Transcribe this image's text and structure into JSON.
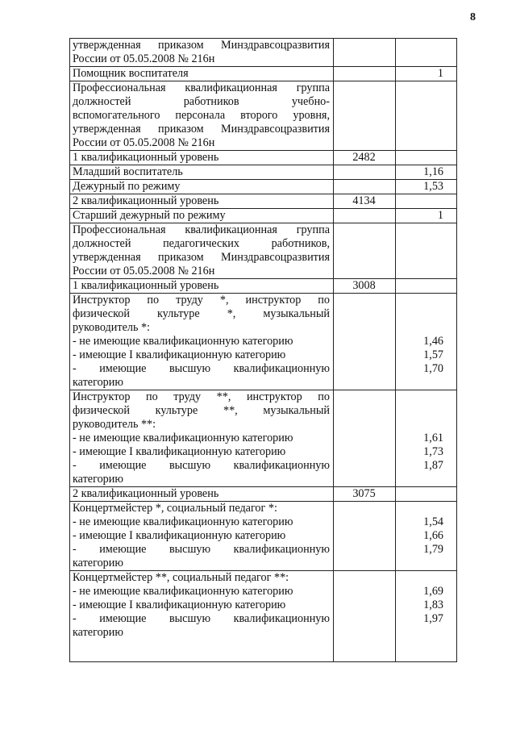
{
  "page_number": "8",
  "rows": [
    {
      "paras": [
        [
          "утвержденная приказом Минздравсоцразвития",
          "России от 05.05.2008 № 216н"
        ]
      ],
      "salary": "",
      "coef": []
    },
    {
      "paras": [
        [
          "Помощник воспитателя"
        ]
      ],
      "salary": "",
      "coef": [
        "1"
      ]
    },
    {
      "paras": [
        [
          "Профессиональная квалификационная группа",
          "должностей работников учебно-",
          "вспомогательного персонала второго уровня,",
          "утвержденная приказом Минздравсоцразвития",
          "России от 05.05.2008 № 216н"
        ]
      ],
      "salary": "",
      "coef": []
    },
    {
      "paras": [
        [
          "1 квалификационный уровень"
        ]
      ],
      "salary": "2482",
      "coef": []
    },
    {
      "paras": [
        [
          "Младший воспитатель"
        ]
      ],
      "salary": "",
      "coef": [
        "1,16"
      ]
    },
    {
      "paras": [
        [
          "Дежурный по режиму"
        ]
      ],
      "salary": "",
      "coef": [
        "1,53"
      ]
    },
    {
      "paras": [
        [
          "2 квалификационный уровень"
        ]
      ],
      "salary": "4134",
      "coef": []
    },
    {
      "paras": [
        [
          "Старший дежурный по режиму"
        ]
      ],
      "salary": "",
      "coef": [
        "1"
      ]
    },
    {
      "paras": [
        [
          "Профессиональная квалификационная группа",
          "должностей педагогических работников,",
          "утвержденная приказом Минздравсоцразвития",
          "России от 05.05.2008 № 216н"
        ]
      ],
      "salary": "",
      "coef": []
    },
    {
      "paras": [
        [
          "1 квалификационный уровень"
        ]
      ],
      "salary": "3008",
      "coef": []
    },
    {
      "paras": [
        [
          "Инструктор по труду *, инструктор по",
          "физической культуре *, музыкальный",
          "руководитель *:"
        ],
        [
          "- не имеющие квалификационную категорию"
        ],
        [
          "- имеющие I квалификационную категорию"
        ],
        [
          "- имеющие высшую квалификационную",
          "категорию"
        ]
      ],
      "salary": "",
      "coef": [
        "",
        "",
        "",
        "1,46",
        "1,57",
        "1,70"
      ]
    },
    {
      "paras": [
        [
          "Инструктор по труду **, инструктор по",
          "физической культуре **, музыкальный",
          "руководитель **:"
        ],
        [
          "- не имеющие квалификационную категорию"
        ],
        [
          "- имеющие I квалификационную категорию"
        ],
        [
          "- имеющие высшую квалификационную",
          "категорию"
        ]
      ],
      "salary": "",
      "coef": [
        "",
        "",
        "",
        "1,61",
        "1,73",
        "1,87"
      ]
    },
    {
      "paras": [
        [
          "2 квалификационный уровень"
        ]
      ],
      "salary": "3075",
      "coef": []
    },
    {
      "paras": [
        [
          "Концертмейстер *, социальный педагог *:"
        ],
        [
          "- не имеющие квалификационную категорию"
        ],
        [
          "- имеющие I квалификационную категорию"
        ],
        [
          "- имеющие высшую квалификационную",
          "категорию"
        ]
      ],
      "salary": "",
      "coef": [
        "",
        "1,54",
        "1,66",
        "1,79"
      ]
    },
    {
      "paras": [
        [
          "Концертмейстер **, социальный педагог **:"
        ],
        [
          "- не имеющие квалификационную категорию"
        ],
        [
          "- имеющие I квалификационную категорию"
        ],
        [
          "- имеющие высшую квалификационную",
          "категорию"
        ]
      ],
      "salary": "",
      "coef": [
        "",
        "1,69",
        "1,83",
        "1,97"
      ]
    }
  ]
}
